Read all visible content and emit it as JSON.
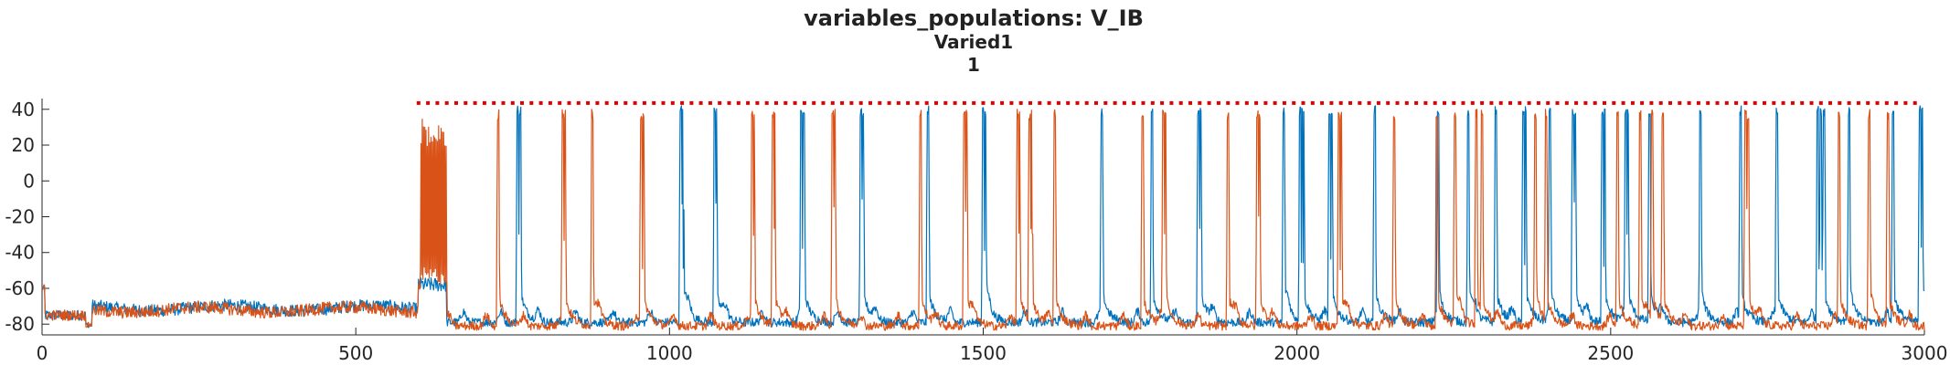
{
  "chart_data": {
    "type": "line",
    "title": "variables_populations: V_IB",
    "subtitle_1": "Varied1",
    "subtitle_2": "1",
    "xlabel": "",
    "ylabel": "",
    "xlim": [
      0,
      3000
    ],
    "ylim": [
      -86,
      46
    ],
    "xticks": [
      0,
      500,
      1000,
      1500,
      2000,
      2500,
      3000
    ],
    "yticks": [
      -80,
      -60,
      -40,
      -20,
      0,
      20,
      40
    ],
    "grid": false,
    "legend": "none",
    "colors": {
      "series_1": "#0072BD",
      "series_2": "#D95319",
      "spike_markers": "#E00000"
    },
    "series": [
      {
        "color": "#0072BD",
        "baseline_pre": -71,
        "baseline_post": -79,
        "spike_peak": 42,
        "spike_times": [
          758,
          762,
          1018,
          1020,
          1021,
          1072,
          1074,
          1210,
          1214,
          1305,
          1308,
          1412,
          1500,
          1503,
          1689,
          1769,
          1843,
          1846,
          1979,
          2005,
          2008,
          2010,
          2052,
          2055,
          2124,
          2225,
          2273,
          2317,
          2361,
          2364,
          2403,
          2440,
          2443,
          2487,
          2490,
          2524,
          2527,
          2562,
          2643,
          2707,
          2765,
          2830,
          2835,
          2840,
          2880,
          2950,
          2993,
          2996
        ]
      },
      {
        "color": "#D95319",
        "baseline_pre": -72,
        "baseline_post": -81,
        "burst_start": 603,
        "burst_end": 645,
        "spike_peak": 40,
        "spike_times": [
          727,
          830,
          833,
          877,
          955,
          958,
          1132,
          1134,
          1165,
          1167,
          1260,
          1263,
          1400,
          1470,
          1473,
          1555,
          1557,
          1574,
          1576,
          1577,
          1614,
          1754,
          1787,
          1790,
          1890,
          1937,
          1940,
          2067,
          2070,
          2155,
          2223,
          2252,
          2286,
          2295,
          2380,
          2397,
          2511,
          2547,
          2566,
          2583,
          2715,
          2719,
          2864,
          2912,
          2942
        ]
      }
    ],
    "spike_markers": {
      "y": 43.5,
      "x_start": 600,
      "x_end": 2995,
      "spacing": 15
    }
  }
}
